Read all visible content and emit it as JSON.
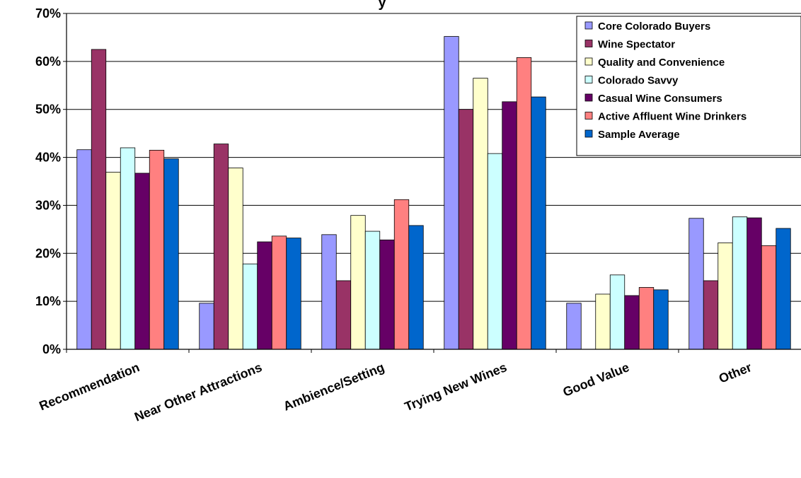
{
  "chart_data": {
    "type": "bar",
    "title": "y",
    "xlabel": "",
    "ylabel": "",
    "ylim": [
      0,
      70
    ],
    "y_ticks": [
      "0%",
      "10%",
      "20%",
      "30%",
      "40%",
      "50%",
      "60%",
      "70%"
    ],
    "y_tick_values": [
      0,
      10,
      20,
      30,
      40,
      50,
      60,
      70
    ],
    "grid": "horizontal",
    "legend_position": "top-right",
    "categories": [
      "Recommendation",
      "Near Other Attractions",
      "Ambience/Setting",
      "Trying New Wines",
      "Good Value",
      "Other"
    ],
    "series": [
      {
        "name": "Core Colorado Buyers",
        "color": "#9999ff",
        "values": [
          41.6,
          9.6,
          23.9,
          65.2,
          9.6,
          27.3
        ]
      },
      {
        "name": "Wine Spectator",
        "color": "#993366",
        "values": [
          62.5,
          42.8,
          14.3,
          50.0,
          0,
          14.3
        ]
      },
      {
        "name": "Quality and Convenience",
        "color": "#ffffcc",
        "values": [
          36.9,
          37.8,
          27.9,
          56.5,
          11.5,
          22.2
        ]
      },
      {
        "name": "Colorado Savvy",
        "color": "#ccffff",
        "values": [
          42.0,
          17.8,
          24.6,
          40.8,
          15.5,
          27.6
        ]
      },
      {
        "name": "Casual Wine Consumers",
        "color": "#660066",
        "values": [
          36.7,
          22.4,
          22.8,
          51.6,
          11.2,
          27.4
        ]
      },
      {
        "name": "Active Affluent Wine Drinkers",
        "color": "#ff8080",
        "values": [
          41.5,
          23.6,
          31.2,
          60.8,
          12.9,
          21.6
        ]
      },
      {
        "name": "Sample Average",
        "color": "#0066cc",
        "values": [
          39.7,
          23.2,
          25.8,
          52.6,
          12.4,
          25.2
        ]
      }
    ]
  }
}
